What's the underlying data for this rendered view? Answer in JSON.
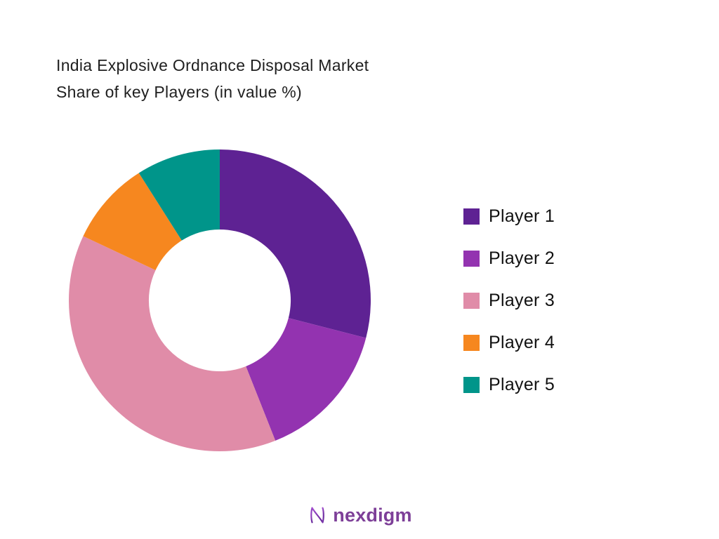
{
  "title": {
    "line1": "India Explosive Ordnance Disposal Market",
    "line2": "Share of key Players (in value %)"
  },
  "chart_data": {
    "type": "pie",
    "subtype": "donut",
    "title": "India Explosive Ordnance Disposal Market Share of key Players (in value %)",
    "legend_position": "right",
    "start_angle_deg": 0,
    "direction": "clockwise",
    "inner_radius_ratio": 0.47,
    "segments": [
      {
        "label": "Player 1",
        "value": 29,
        "color": "#5E2293"
      },
      {
        "label": "Player 2",
        "value": 15,
        "color": "#9333B0"
      },
      {
        "label": "Player 3",
        "value": 38,
        "color": "#E08CA8"
      },
      {
        "label": "Player 4",
        "value": 9,
        "color": "#F6871F"
      },
      {
        "label": "Player 5",
        "value": 9,
        "color": "#00958A"
      }
    ]
  },
  "footer": {
    "brand": "nexdigm",
    "brand_color": "#7D3F98"
  }
}
